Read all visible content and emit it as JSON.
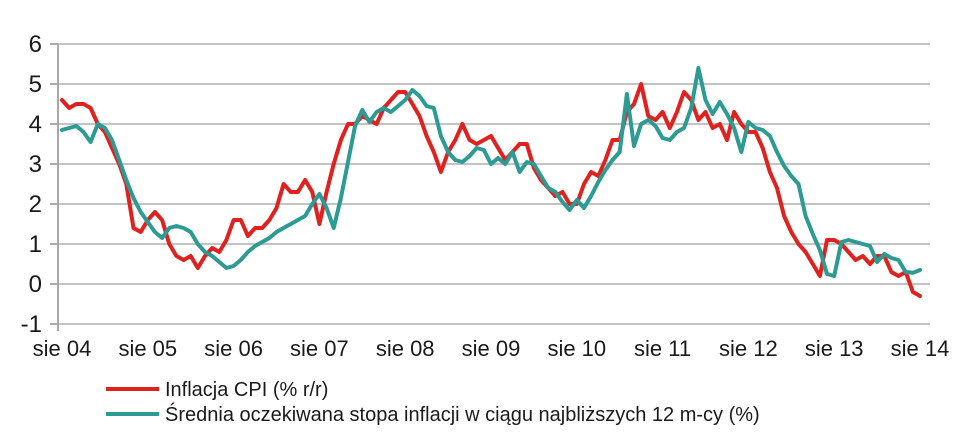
{
  "chart_data": {
    "type": "line",
    "title": "",
    "xlabel": "",
    "ylabel": "",
    "x_start": "sie 04",
    "x_end": "sie 14",
    "x_frequency": "monthly",
    "x_tick_labels": [
      "sie 04",
      "sie 05",
      "sie 06",
      "sie 07",
      "sie 08",
      "sie 09",
      "sie 10",
      "sie 11",
      "sie 12",
      "sie 13",
      "sie 14"
    ],
    "y_ticks": [
      6,
      5,
      4,
      3,
      2,
      1,
      0,
      -1
    ],
    "ylim": [
      -1,
      6
    ],
    "grid": "horizontal",
    "legend_position": "bottom-left",
    "background_color": "#ffffff",
    "gridline_color": "#c3c3c3",
    "axis_color": "#a9a9a9",
    "series": [
      {
        "name": "Inflacja CPI (% r/r)",
        "color": "#df221f",
        "values": [
          4.6,
          4.4,
          4.5,
          4.5,
          4.4,
          4.0,
          3.8,
          3.4,
          3.0,
          2.5,
          1.4,
          1.3,
          1.6,
          1.8,
          1.6,
          1.0,
          0.7,
          0.6,
          0.7,
          0.4,
          0.7,
          0.9,
          0.8,
          1.1,
          1.6,
          1.6,
          1.2,
          1.4,
          1.4,
          1.6,
          1.9,
          2.5,
          2.3,
          2.3,
          2.6,
          2.3,
          1.5,
          2.3,
          3.0,
          3.6,
          4.0,
          4.0,
          4.2,
          4.1,
          4.0,
          4.4,
          4.6,
          4.8,
          4.8,
          4.5,
          4.2,
          3.7,
          3.3,
          2.8,
          3.3,
          3.6,
          4.0,
          3.6,
          3.5,
          3.6,
          3.7,
          3.4,
          3.1,
          3.3,
          3.5,
          3.5,
          2.9,
          2.6,
          2.4,
          2.2,
          2.3,
          2.0,
          2.0,
          2.5,
          2.8,
          2.7,
          3.1,
          3.6,
          3.6,
          4.3,
          4.5,
          5.0,
          4.2,
          4.1,
          4.3,
          3.9,
          4.3,
          4.8,
          4.6,
          4.1,
          4.3,
          3.9,
          4.0,
          3.6,
          4.3,
          4.0,
          3.8,
          3.8,
          3.4,
          2.8,
          2.4,
          1.7,
          1.3,
          1.0,
          0.8,
          0.5,
          0.2,
          1.1,
          1.1,
          1.0,
          0.8,
          0.6,
          0.7,
          0.5,
          0.7,
          0.7,
          0.3,
          0.2,
          0.3,
          -0.2,
          -0.3
        ]
      },
      {
        "name": "Średnia oczekiwana stopa inflacji w ciągu najbliższych 12 m-cy (%)",
        "color": "#2b9b93",
        "values": [
          3.85,
          3.9,
          3.95,
          3.8,
          3.55,
          4.0,
          3.9,
          3.6,
          3.1,
          2.6,
          2.15,
          1.8,
          1.55,
          1.3,
          1.15,
          1.4,
          1.45,
          1.4,
          1.3,
          1.0,
          0.8,
          0.7,
          0.55,
          0.4,
          0.45,
          0.6,
          0.8,
          0.95,
          1.05,
          1.15,
          1.3,
          1.4,
          1.5,
          1.6,
          1.7,
          2.0,
          2.25,
          1.9,
          1.4,
          2.15,
          3.05,
          3.95,
          4.35,
          4.05,
          4.3,
          4.4,
          4.3,
          4.45,
          4.6,
          4.85,
          4.7,
          4.45,
          4.4,
          3.7,
          3.3,
          3.1,
          3.05,
          3.2,
          3.4,
          3.35,
          3.0,
          3.15,
          3.0,
          3.3,
          2.8,
          3.05,
          3.0,
          2.7,
          2.4,
          2.3,
          2.05,
          1.85,
          2.1,
          1.9,
          2.2,
          2.55,
          2.85,
          3.1,
          3.3,
          4.75,
          3.45,
          4.0,
          4.1,
          3.95,
          3.65,
          3.6,
          3.8,
          3.9,
          4.4,
          5.4,
          4.6,
          4.25,
          4.55,
          4.25,
          3.9,
          3.3,
          4.05,
          3.9,
          3.85,
          3.7,
          3.3,
          2.95,
          2.7,
          2.5,
          1.7,
          1.25,
          0.85,
          0.25,
          0.2,
          1.05,
          1.1,
          1.05,
          1.0,
          0.95,
          0.55,
          0.75,
          0.65,
          0.6,
          0.3,
          0.28,
          0.35
        ]
      }
    ]
  }
}
